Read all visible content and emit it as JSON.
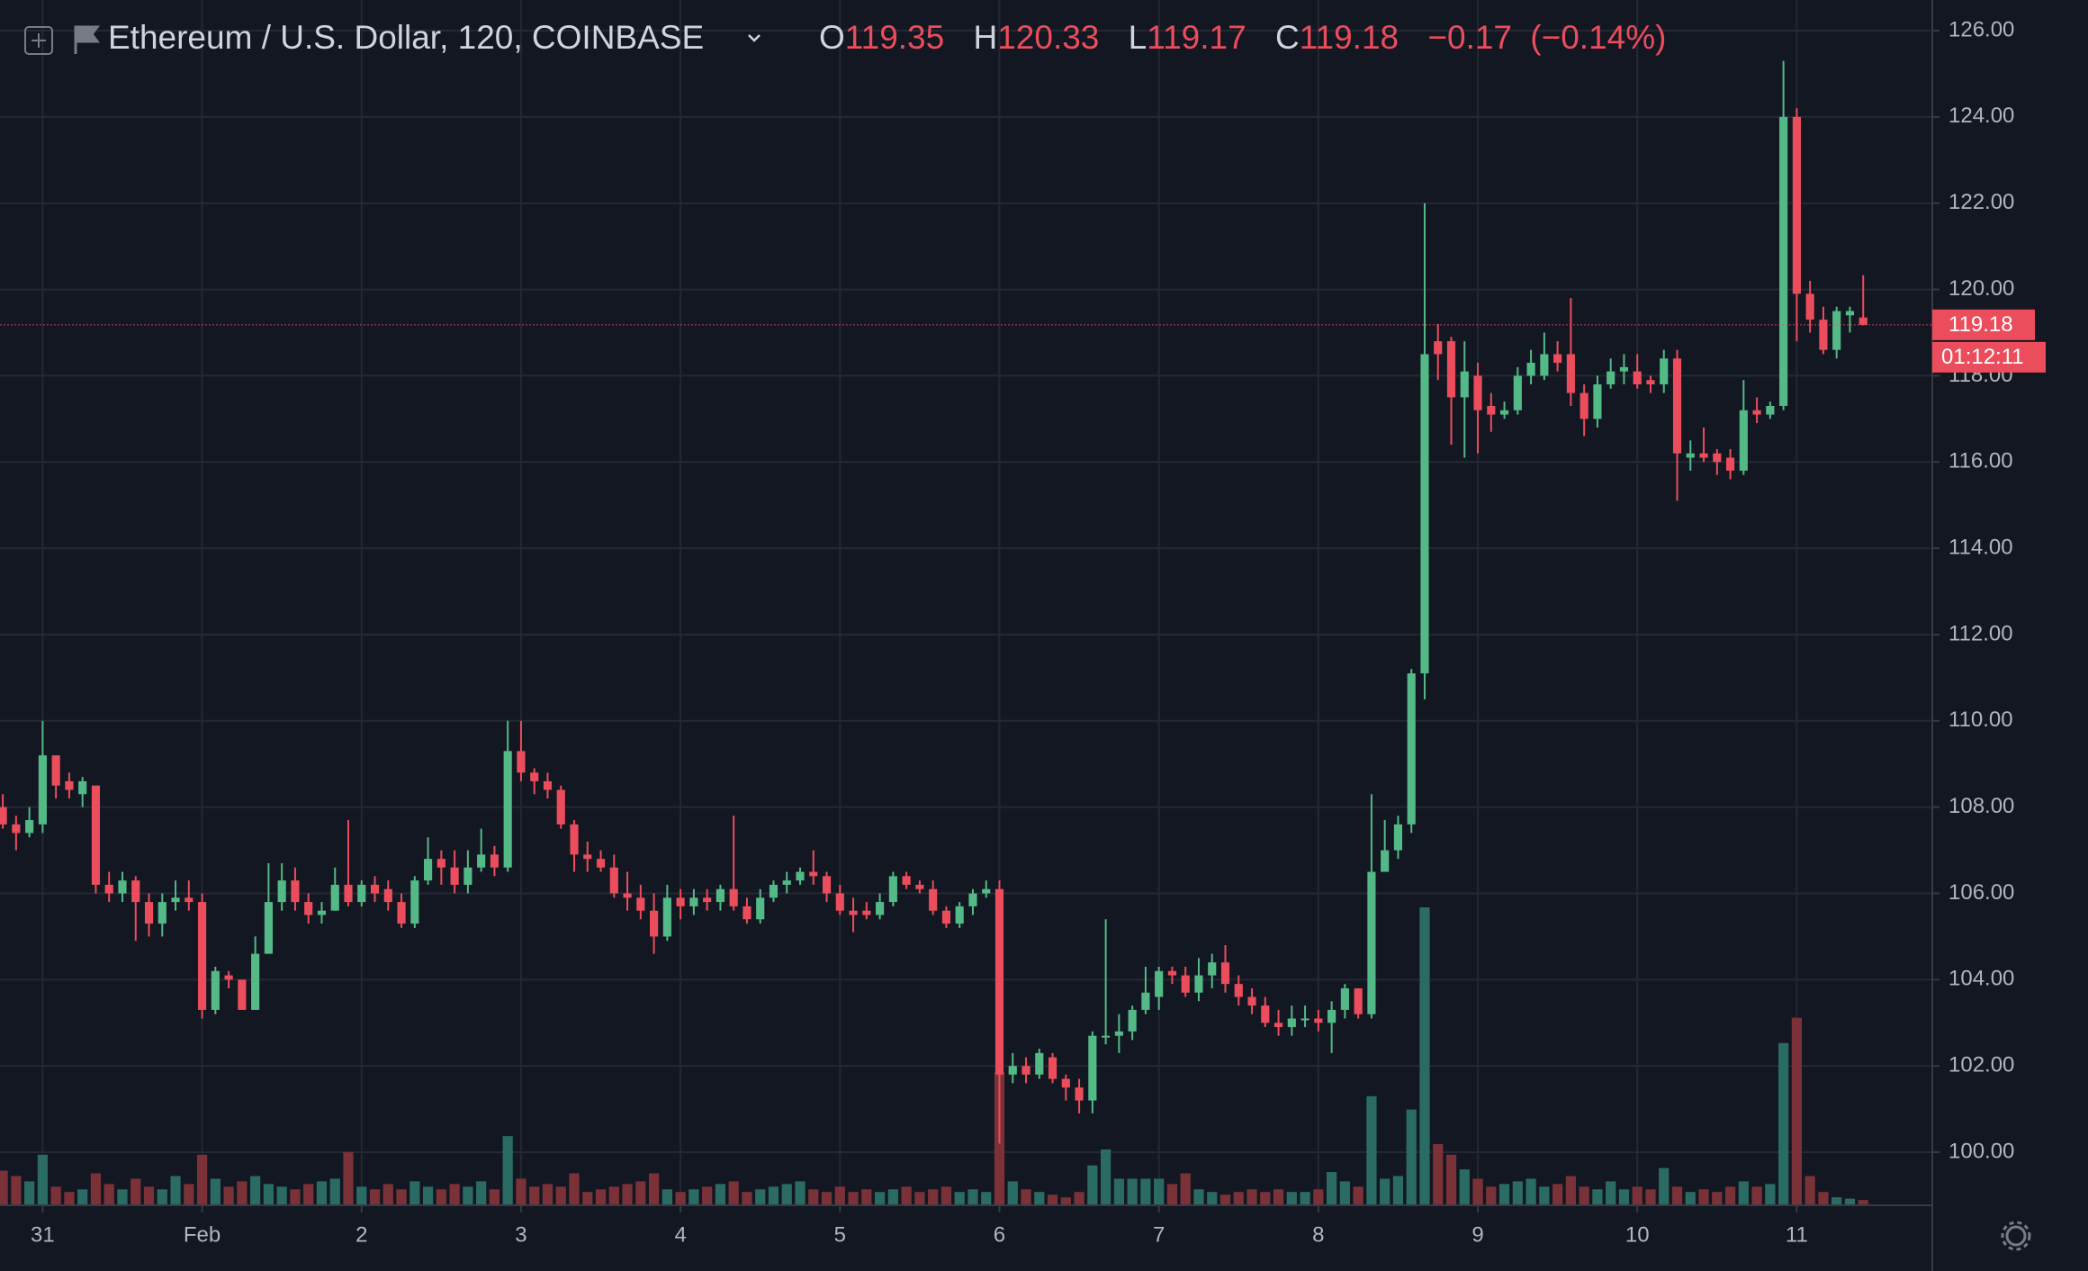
{
  "chart_data": {
    "type": "candlestick",
    "header": {
      "symbol": "Ethereum / U.S. Dollar, 120, COINBASE",
      "legend": [
        {
          "label": "O",
          "value": 119.35
        },
        {
          "label": "H",
          "value": 120.33
        },
        {
          "label": "L",
          "value": 119.17
        },
        {
          "label": "C",
          "value": 119.18
        }
      ],
      "change": {
        "value": -0.17,
        "label": "−0.17"
      },
      "change_pct": {
        "value": -0.14,
        "label": "(−0.14%)"
      }
    },
    "last_price": 119.18,
    "countdown": "01:12:11",
    "up_color": "#53b987",
    "down_color": "#eb4d5c",
    "up_volume_color": "#2a6b63",
    "down_volume_color": "#7a3137",
    "grid": true,
    "ylim": [
      98.77,
      126.71
    ],
    "yticks": [
      {
        "value": 100,
        "label": "100.00"
      },
      {
        "value": 102,
        "label": "102.00"
      },
      {
        "value": 104,
        "label": "104.00"
      },
      {
        "value": 106,
        "label": "106.00"
      },
      {
        "value": 108,
        "label": "108.00"
      },
      {
        "value": 110,
        "label": "110.00"
      },
      {
        "value": 112,
        "label": "112.00"
      },
      {
        "value": 114,
        "label": "114.00"
      },
      {
        "value": 116,
        "label": "116.00"
      },
      {
        "value": 118,
        "label": "118.00"
      },
      {
        "value": 120,
        "label": "120.00"
      },
      {
        "value": 122,
        "label": "122.00"
      },
      {
        "value": 124,
        "label": "124.00"
      },
      {
        "value": 126,
        "label": "126.00"
      }
    ],
    "xlim": [
      -0.21,
      145.2
    ],
    "xticks": [
      {
        "value": 3,
        "label": "31"
      },
      {
        "value": 15,
        "label": "Feb"
      },
      {
        "value": 27,
        "label": "2"
      },
      {
        "value": 39,
        "label": "3"
      },
      {
        "value": 51,
        "label": "4"
      },
      {
        "value": 63,
        "label": "5"
      },
      {
        "value": 75,
        "label": "6"
      },
      {
        "value": 87,
        "label": "7"
      },
      {
        "value": 99,
        "label": "8"
      },
      {
        "value": 111,
        "label": "9"
      },
      {
        "value": 123,
        "label": "10"
      },
      {
        "value": 135,
        "label": "11"
      }
    ],
    "ohlc": [
      [
        108,
        108.3,
        107.5,
        107.6
      ],
      [
        107.6,
        107.8,
        107,
        107.4
      ],
      [
        107.4,
        108,
        107.3,
        107.7
      ],
      [
        107.6,
        110,
        107.4,
        109.2
      ],
      [
        109.2,
        109.2,
        108.2,
        108.5
      ],
      [
        108.6,
        108.8,
        108.2,
        108.4
      ],
      [
        108.3,
        108.7,
        108,
        108.6
      ],
      [
        108.5,
        108.5,
        106,
        106.2
      ],
      [
        106.2,
        106.5,
        105.8,
        106
      ],
      [
        106,
        106.5,
        105.8,
        106.3
      ],
      [
        106.3,
        106.4,
        104.9,
        105.8
      ],
      [
        105.8,
        106,
        105,
        105.3
      ],
      [
        105.3,
        106,
        105,
        105.8
      ],
      [
        105.8,
        106.3,
        105.6,
        105.9
      ],
      [
        105.9,
        106.3,
        105.6,
        105.8
      ],
      [
        105.8,
        106,
        103.1,
        103.3
      ],
      [
        103.3,
        104.3,
        103.2,
        104.2
      ],
      [
        104.1,
        104.2,
        103.8,
        104
      ],
      [
        104,
        104,
        103.3,
        103.3
      ],
      [
        103.3,
        105,
        103.3,
        104.6
      ],
      [
        104.6,
        106.7,
        104.6,
        105.8
      ],
      [
        105.8,
        106.7,
        105.6,
        106.3
      ],
      [
        106.3,
        106.6,
        105.6,
        105.8
      ],
      [
        105.8,
        106,
        105.3,
        105.5
      ],
      [
        105.5,
        105.8,
        105.3,
        105.6
      ],
      [
        105.6,
        106.6,
        105.6,
        106.2
      ],
      [
        106.2,
        107.7,
        105.7,
        105.8
      ],
      [
        105.8,
        106.3,
        105.7,
        106.2
      ],
      [
        106.2,
        106.4,
        105.8,
        106
      ],
      [
        106.1,
        106.3,
        105.6,
        105.8
      ],
      [
        105.8,
        106,
        105.2,
        105.3
      ],
      [
        105.3,
        106.4,
        105.2,
        106.3
      ],
      [
        106.3,
        107.3,
        106.2,
        106.8
      ],
      [
        106.8,
        107,
        106.2,
        106.6
      ],
      [
        106.6,
        107,
        106,
        106.2
      ],
      [
        106.2,
        107,
        106,
        106.6
      ],
      [
        106.6,
        107.5,
        106.5,
        106.9
      ],
      [
        106.9,
        107.1,
        106.4,
        106.6
      ],
      [
        106.6,
        110,
        106.5,
        109.3
      ],
      [
        109.3,
        110,
        108.6,
        108.8
      ],
      [
        108.8,
        108.9,
        108.3,
        108.6
      ],
      [
        108.6,
        108.8,
        108.2,
        108.4
      ],
      [
        108.4,
        108.5,
        107.5,
        107.6
      ],
      [
        107.6,
        107.7,
        106.5,
        106.9
      ],
      [
        106.9,
        107.2,
        106.5,
        106.8
      ],
      [
        106.8,
        107,
        106.5,
        106.6
      ],
      [
        106.6,
        106.9,
        105.9,
        106
      ],
      [
        106,
        106.5,
        105.6,
        105.9
      ],
      [
        105.9,
        106.2,
        105.4,
        105.6
      ],
      [
        105.6,
        106,
        104.6,
        105
      ],
      [
        105,
        106.2,
        104.9,
        105.9
      ],
      [
        105.9,
        106.1,
        105.4,
        105.7
      ],
      [
        105.7,
        106.1,
        105.5,
        105.9
      ],
      [
        105.9,
        106.1,
        105.6,
        105.8
      ],
      [
        105.8,
        106.2,
        105.6,
        106.1
      ],
      [
        106.1,
        107.8,
        105.6,
        105.7
      ],
      [
        105.7,
        105.9,
        105.3,
        105.4
      ],
      [
        105.4,
        106.1,
        105.3,
        105.9
      ],
      [
        105.9,
        106.3,
        105.8,
        106.2
      ],
      [
        106.2,
        106.5,
        106,
        106.3
      ],
      [
        106.3,
        106.6,
        106.2,
        106.5
      ],
      [
        106.5,
        107,
        106.2,
        106.4
      ],
      [
        106.4,
        106.5,
        105.8,
        106
      ],
      [
        106,
        106.2,
        105.5,
        105.6
      ],
      [
        105.6,
        105.9,
        105.1,
        105.5
      ],
      [
        105.6,
        105.8,
        105.4,
        105.5
      ],
      [
        105.5,
        106,
        105.4,
        105.8
      ],
      [
        105.8,
        106.5,
        105.7,
        106.4
      ],
      [
        106.4,
        106.5,
        106.1,
        106.2
      ],
      [
        106.2,
        106.3,
        106,
        106.1
      ],
      [
        106.1,
        106.3,
        105.5,
        105.6
      ],
      [
        105.6,
        105.7,
        105.2,
        105.3
      ],
      [
        105.3,
        105.8,
        105.2,
        105.7
      ],
      [
        105.7,
        106.1,
        105.5,
        106
      ],
      [
        106,
        106.3,
        105.9,
        106.1
      ],
      [
        106.1,
        106.3,
        100.2,
        101.8
      ],
      [
        101.8,
        102.3,
        101.6,
        102
      ],
      [
        102,
        102.2,
        101.6,
        101.8
      ],
      [
        101.8,
        102.4,
        101.7,
        102.3
      ],
      [
        102.2,
        102.3,
        101.6,
        101.7
      ],
      [
        101.7,
        101.8,
        101.2,
        101.5
      ],
      [
        101.5,
        101.7,
        100.9,
        101.2
      ],
      [
        101.2,
        102.8,
        100.9,
        102.7
      ],
      [
        102.7,
        105.4,
        102.5,
        102.7
      ],
      [
        102.7,
        103.2,
        102.3,
        102.8
      ],
      [
        102.8,
        103.4,
        102.6,
        103.3
      ],
      [
        103.3,
        104.3,
        103.2,
        103.7
      ],
      [
        103.6,
        104.3,
        103.3,
        104.2
      ],
      [
        104.2,
        104.3,
        103.9,
        104.1
      ],
      [
        104.1,
        104.3,
        103.6,
        103.7
      ],
      [
        103.7,
        104.5,
        103.5,
        104.1
      ],
      [
        104.1,
        104.6,
        103.8,
        104.4
      ],
      [
        104.4,
        104.8,
        103.7,
        103.9
      ],
      [
        103.9,
        104.1,
        103.4,
        103.6
      ],
      [
        103.6,
        103.8,
        103.2,
        103.4
      ],
      [
        103.4,
        103.6,
        102.9,
        103
      ],
      [
        103,
        103.3,
        102.7,
        102.9
      ],
      [
        102.9,
        103.4,
        102.7,
        103.1
      ],
      [
        103.1,
        103.4,
        102.9,
        103.1
      ],
      [
        103.1,
        103.3,
        102.8,
        103
      ],
      [
        103,
        103.5,
        102.3,
        103.3
      ],
      [
        103.3,
        103.9,
        103.1,
        103.8
      ],
      [
        103.8,
        103.8,
        103.1,
        103.2
      ],
      [
        103.2,
        108.3,
        103.1,
        106.5
      ],
      [
        106.5,
        107.7,
        106.5,
        107
      ],
      [
        107,
        107.8,
        106.8,
        107.6
      ],
      [
        107.6,
        111.2,
        107.4,
        111.1
      ],
      [
        111.1,
        122,
        110.5,
        118.5
      ],
      [
        118.8,
        119.2,
        117.9,
        118.5
      ],
      [
        118.8,
        118.9,
        116.4,
        117.5
      ],
      [
        117.5,
        118.8,
        116.1,
        118.1
      ],
      [
        118,
        118.3,
        116.2,
        117.2
      ],
      [
        117.3,
        117.6,
        116.7,
        117.1
      ],
      [
        117.1,
        117.4,
        117,
        117.2
      ],
      [
        117.2,
        118.2,
        117.1,
        118
      ],
      [
        118,
        118.6,
        117.8,
        118.3
      ],
      [
        118,
        119,
        117.9,
        118.5
      ],
      [
        118.5,
        118.8,
        118.1,
        118.3
      ],
      [
        118.5,
        119.8,
        117.3,
        117.6
      ],
      [
        117.6,
        117.8,
        116.6,
        117
      ],
      [
        117,
        118,
        116.8,
        117.8
      ],
      [
        117.8,
        118.4,
        117.7,
        118.1
      ],
      [
        118.1,
        118.5,
        117.8,
        118.2
      ],
      [
        118.1,
        118.5,
        117.7,
        117.8
      ],
      [
        117.9,
        118,
        117.6,
        117.8
      ],
      [
        117.8,
        118.6,
        117.6,
        118.4
      ],
      [
        118.4,
        118.6,
        115.1,
        116.2
      ],
      [
        116.1,
        116.5,
        115.8,
        116.2
      ],
      [
        116.2,
        116.8,
        116,
        116.1
      ],
      [
        116.2,
        116.3,
        115.7,
        116
      ],
      [
        116.1,
        116.3,
        115.6,
        115.8
      ],
      [
        115.8,
        117.9,
        115.7,
        117.2
      ],
      [
        117.2,
        117.5,
        116.9,
        117.1
      ],
      [
        117.1,
        117.4,
        117,
        117.3
      ],
      [
        117.3,
        125.3,
        117.2,
        124
      ],
      [
        124,
        124.2,
        118.8,
        119.9
      ],
      [
        119.9,
        120.2,
        119,
        119.3
      ],
      [
        119.3,
        119.6,
        118.5,
        118.6
      ],
      [
        118.6,
        119.6,
        118.4,
        119.5
      ],
      [
        119.4,
        119.6,
        119,
        119.5
      ],
      [
        119.35,
        120.33,
        119.17,
        119.18
      ]
    ],
    "volume": [
      26,
      22,
      18,
      38,
      14,
      10,
      12,
      24,
      16,
      12,
      20,
      14,
      12,
      22,
      16,
      38,
      20,
      14,
      18,
      22,
      16,
      14,
      12,
      16,
      18,
      20,
      40,
      14,
      12,
      16,
      12,
      18,
      14,
      12,
      16,
      14,
      18,
      12,
      52,
      20,
      14,
      16,
      14,
      24,
      10,
      12,
      14,
      16,
      18,
      24,
      12,
      10,
      12,
      14,
      16,
      18,
      10,
      12,
      14,
      16,
      18,
      12,
      10,
      14,
      10,
      12,
      10,
      12,
      14,
      10,
      12,
      14,
      10,
      12,
      10,
      100,
      18,
      12,
      10,
      8,
      6,
      10,
      30,
      42,
      20,
      20,
      20,
      20,
      16,
      24,
      12,
      10,
      8,
      10,
      12,
      10,
      12,
      10,
      10,
      12,
      25,
      18,
      14,
      82,
      20,
      22,
      72,
      224,
      46,
      38,
      27,
      20,
      14,
      16,
      18,
      20,
      14,
      16,
      22,
      14,
      12,
      18,
      12,
      14,
      12,
      28,
      14,
      10,
      12,
      10,
      14,
      18,
      14,
      16,
      122,
      141,
      22,
      10,
      6,
      5,
      4
    ]
  }
}
